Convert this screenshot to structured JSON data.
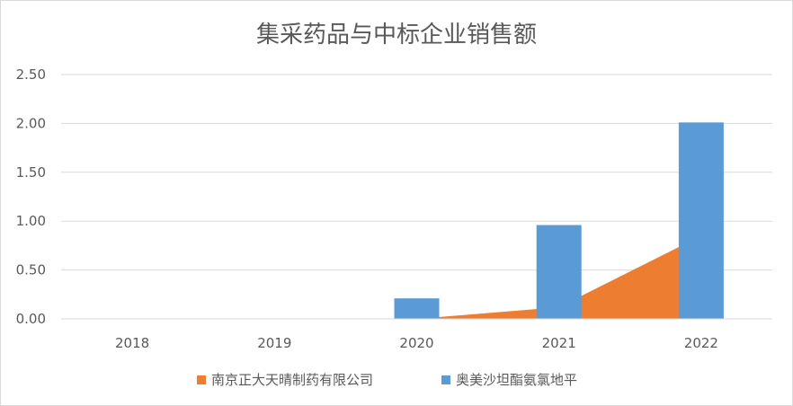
{
  "chart_data": {
    "type": "bar",
    "title": "集采药品与中标企业销售额",
    "categories": [
      "2018",
      "2019",
      "2020",
      "2021",
      "2022"
    ],
    "ylim": [
      0,
      2.5
    ],
    "yticks": [
      "0.00",
      "0.50",
      "1.00",
      "1.50",
      "2.00",
      "2.50"
    ],
    "grid": true,
    "legend_position": "bottom",
    "series": [
      {
        "name": "南京正大天晴制药有限公司",
        "render": "area",
        "color": "#ED7D31",
        "values": [
          0,
          0,
          0.0,
          0.12,
          0.85
        ]
      },
      {
        "name": "奥美沙坦酯氨氯地平",
        "render": "bar",
        "color": "#5B9BD5",
        "values": [
          0,
          0,
          0.21,
          0.96,
          2.01
        ]
      }
    ]
  }
}
